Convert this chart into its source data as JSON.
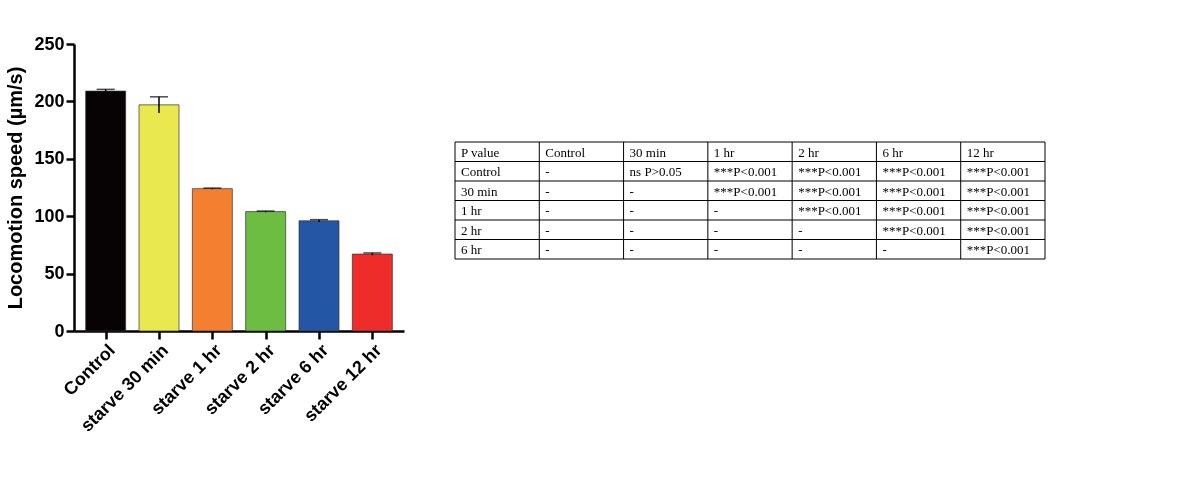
{
  "chart_data": [
    {
      "type": "bar",
      "ylabel": "Locomotion speed (µm/s)",
      "categories": [
        "Control",
        "starve 30 min",
        "starve 1 hr",
        "starve 2 hr",
        "starve 6 hr",
        "starve 12 hr"
      ],
      "values": [
        209,
        197,
        124,
        104,
        96,
        67
      ],
      "colors": [
        "#070304",
        "#e9e84e",
        "#f47f31",
        "#6dbd43",
        "#2456a6",
        "#ee2c29"
      ],
      "errors": [
        1.5,
        7,
        0.5,
        0.5,
        1,
        1
      ],
      "ylim": [
        0,
        250
      ],
      "yticks": [
        0,
        50,
        100,
        150,
        200,
        250
      ],
      "grid": false
    },
    {
      "type": "other",
      "categories": [
        "P value",
        "Control",
        "30 min",
        "1 hr",
        "2 hr",
        "6 hr",
        "12 hr"
      ],
      "y_categories": [
        "Control",
        "30 min",
        "1 hr",
        "2 hr",
        "6 hr"
      ],
      "cell_labels": [
        [
          "-",
          "ns P>0.05",
          "***P<0.001",
          "***P<0.001",
          "***P<0.001",
          "***P<0.001"
        ],
        [
          "-",
          "-",
          "***P<0.001",
          "***P<0.001",
          "***P<0.001",
          "***P<0.001"
        ],
        [
          "-",
          "-",
          "-",
          "***P<0.001",
          "***P<0.001",
          "***P<0.001"
        ],
        [
          "-",
          "-",
          "-",
          "-",
          "***P<0.001",
          "***P<0.001"
        ],
        [
          "-",
          "-",
          "-",
          "-",
          "-",
          "***P<0.001"
        ]
      ]
    }
  ]
}
